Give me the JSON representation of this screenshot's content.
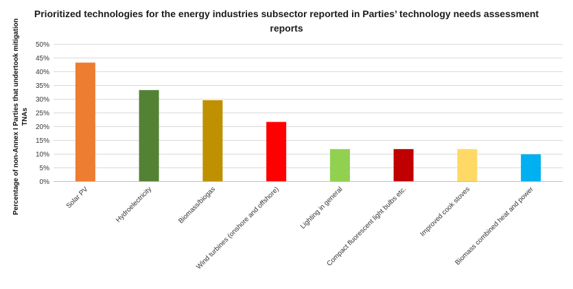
{
  "chart_data": {
    "type": "bar",
    "title": "Prioritized technologies for the energy industries subsector reported in Parties’ technology needs assessment reports",
    "xlabel": "",
    "ylabel": "Percentage of non-Annex I Parties that undertook mitigation TNAs",
    "ylim": [
      0,
      50
    ],
    "y_tick_step": 5,
    "y_tick_suffix": "%",
    "grid": true,
    "legend": "none",
    "categories": [
      "Solar PV",
      "Hydroelectricity",
      "Biomass/biogas",
      "Wind turbines (onshore and offshore)",
      "Lighting in general",
      "Compact fluorescent light bulbs etc.",
      "Improved cook stoves",
      "Biomass combined heat and power"
    ],
    "values": [
      43.2,
      33.2,
      29.5,
      21.6,
      11.7,
      11.7,
      11.7,
      9.8
    ],
    "colors": [
      "#ed7d31",
      "#548235",
      "#bf9000",
      "#ff0000",
      "#92d050",
      "#c00000",
      "#ffd966",
      "#00b0f0"
    ]
  }
}
